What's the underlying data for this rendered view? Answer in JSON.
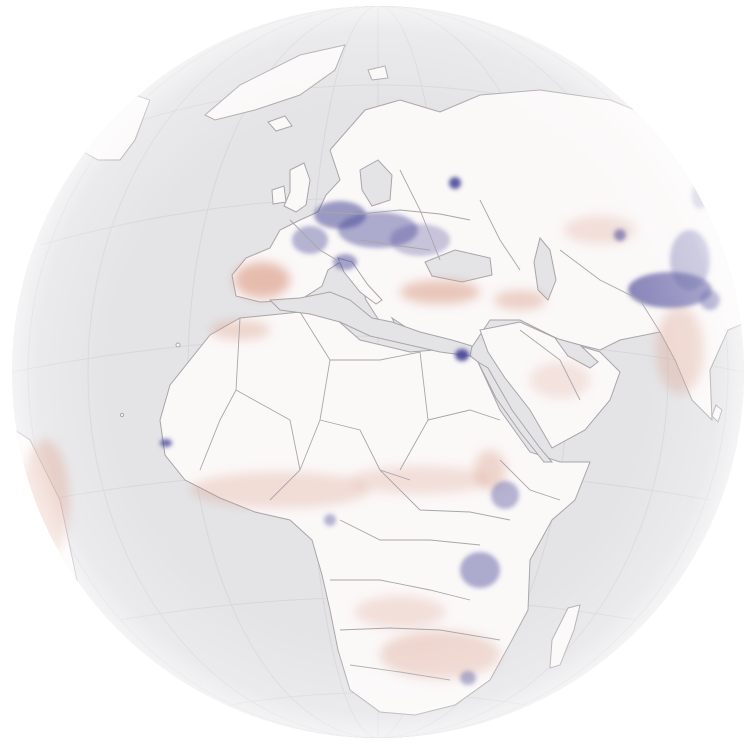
{
  "map": {
    "projection": "orthographic",
    "center": "Africa-Europe",
    "colors": {
      "ocean": "#e4e4e7",
      "land": "#fbf8f8",
      "border": "#a9a5aa",
      "graticule": "#d7d7db",
      "warm": "#d8957f",
      "cool": "#4b4a98",
      "shade": "#ffffff"
    },
    "layers": [
      "graticule",
      "land",
      "borders",
      "density-warm",
      "density-cool",
      "limb-shading"
    ]
  }
}
